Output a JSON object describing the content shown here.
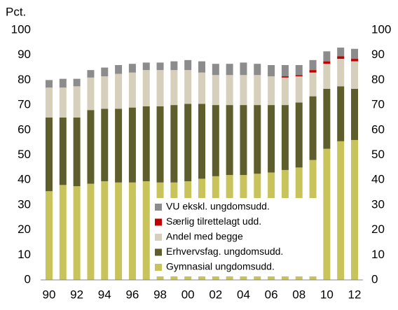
{
  "chart_data": {
    "type": "stacked_bar",
    "y_label": "Pct.",
    "categories": [
      "90",
      null,
      "92",
      null,
      "94",
      null,
      "96",
      null,
      "98",
      null,
      "00",
      null,
      "02",
      null,
      "04",
      null,
      "06",
      null,
      "08",
      null,
      "10",
      null,
      "12"
    ],
    "series": [
      {
        "name": "Gymnasial ungdomsudd.",
        "color": "#c9c35c",
        "values": [
          35.5,
          38,
          37.5,
          38.5,
          39.5,
          39,
          39,
          39.5,
          39,
          39,
          39.5,
          40.5,
          41.5,
          42,
          42,
          42.5,
          43,
          44,
          45,
          48,
          52.5,
          55.5,
          56
        ]
      },
      {
        "name": "Erhvervsfag. ungdomsudd.",
        "color": "#5e5e2c",
        "values": [
          29.5,
          27,
          27.5,
          29.5,
          29,
          29.5,
          30,
          30,
          30.5,
          31,
          31,
          30,
          28.5,
          28,
          28,
          27.5,
          27,
          26,
          26,
          25.5,
          24,
          22,
          20.5
        ]
      },
      {
        "name": "Andel med begge",
        "color": "#d5cfbc",
        "values": [
          12,
          12,
          12.5,
          13,
          13,
          14,
          14,
          14.5,
          14.5,
          14,
          13.5,
          12.5,
          12,
          12,
          12,
          12,
          11.5,
          11,
          10.5,
          9.5,
          10,
          11,
          11
        ]
      },
      {
        "name": "Særlig tilrettelagt udd.",
        "color": "#c00000",
        "values": [
          0,
          0,
          0,
          0,
          0,
          0,
          0,
          0,
          0,
          0,
          0,
          0,
          0,
          0,
          0,
          0,
          0,
          0.5,
          0.5,
          1,
          1,
          1,
          1
        ]
      },
      {
        "name": "VU ekskl. ungdomsudd.",
        "color": "#8c8c8c",
        "values": [
          3,
          3.5,
          3,
          3,
          3.5,
          3.5,
          3.5,
          3,
          3,
          3.5,
          4,
          4.5,
          4.5,
          4.5,
          5,
          4.5,
          4.5,
          4.5,
          4,
          4,
          4,
          3.5,
          4
        ]
      }
    ],
    "ylim": [
      0,
      100
    ],
    "yticks": [
      0,
      10,
      20,
      30,
      40,
      50,
      60,
      70,
      80,
      90,
      100
    ],
    "y2lim": [
      0,
      100
    ],
    "y2ticks": [
      0,
      10,
      20,
      30,
      40,
      50,
      60,
      70,
      80,
      90,
      100
    ],
    "legend": "bottom-center"
  }
}
